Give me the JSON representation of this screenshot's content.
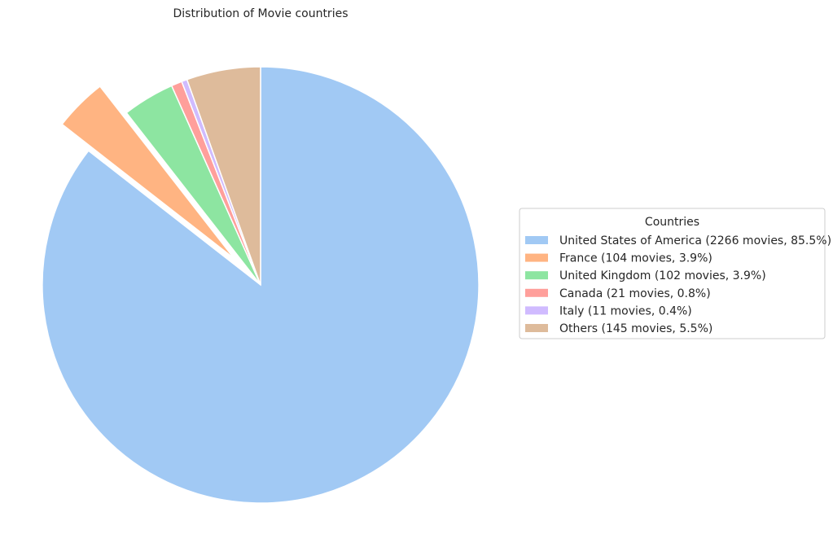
{
  "chart_data": {
    "type": "pie",
    "title": "Distribution of Movie countries",
    "start_angle_deg": 90,
    "direction": "clockwise",
    "slices": [
      {
        "label": "United States of America (2266 movies, 85.5%)",
        "value": 2266,
        "percent": 85.5,
        "color": "#a1c9f4",
        "exploded": false
      },
      {
        "label": "France (104 movies, 3.9%)",
        "value": 104,
        "percent": 3.9,
        "color": "#ffb482",
        "exploded": true
      },
      {
        "label": "United Kingdom (102 movies, 3.9%)",
        "value": 102,
        "percent": 3.9,
        "color": "#8de5a1",
        "exploded": false
      },
      {
        "label": "Canada (21 movies, 0.8%)",
        "value": 21,
        "percent": 0.8,
        "color": "#ff9f9b",
        "exploded": false
      },
      {
        "label": "Italy (11 movies, 0.4%)",
        "value": 11,
        "percent": 0.4,
        "color": "#d0bbff",
        "exploded": false
      },
      {
        "label": "Others (145 movies, 5.5%)",
        "value": 145,
        "percent": 5.5,
        "color": "#debb9b",
        "exploded": false
      }
    ],
    "legend": {
      "title": "Countries",
      "placement": "center-right"
    }
  }
}
